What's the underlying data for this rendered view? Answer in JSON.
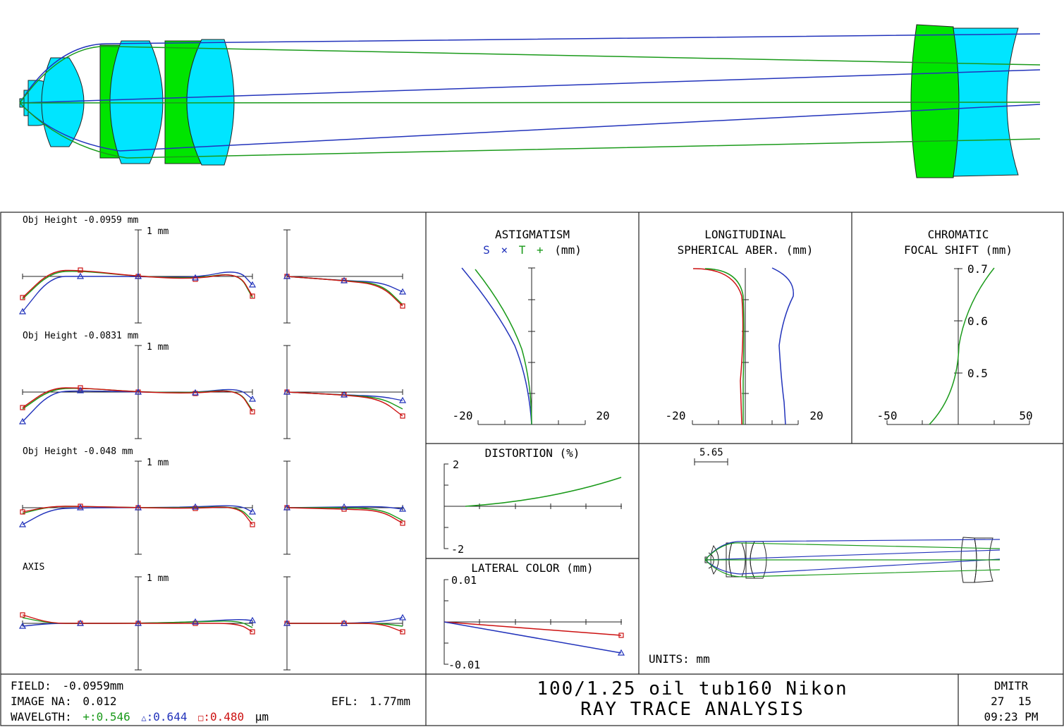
{
  "title_block": {
    "field_label": "FIELD:",
    "field_value": "-0.0959",
    "field_unit": "mm",
    "na_label": "IMAGE NA:",
    "na_value": "0.012",
    "efl_label": "EFL:",
    "efl_value": "1.77",
    "efl_unit": "mm",
    "wave_label": "WAVELGTH:",
    "wavelengths": [
      {
        "symbol": "+",
        "value": ":0.546",
        "color": "#1a9a1a"
      },
      {
        "symbol": "△",
        "value": ":0.644",
        "color": "#2233bb"
      },
      {
        "symbol": "□",
        "value": ":0.480",
        "color": "#cc1111"
      }
    ],
    "wave_unit": "µm",
    "lens_name": "100/1.25 oil tub160 Nikon",
    "analysis_title": "RAY TRACE ANALYSIS",
    "designer": "DMITR",
    "date": "27  15",
    "time": "09:23 PM"
  },
  "fan_plots": {
    "scale_label": "1 mm",
    "rows": [
      {
        "label": "Obj Height -0.0959 mm",
        "show_scale": true
      },
      {
        "label": "Obj Height -0.0831 mm",
        "show_scale": true
      },
      {
        "label": "Obj Height -0.048 mm",
        "show_scale": true
      },
      {
        "label": "AXIS",
        "show_scale": true
      }
    ]
  },
  "astigmatism": {
    "title1": "ASTIGMATISM",
    "title2_s": "S",
    "title2_x": "×",
    "title2_t": "T",
    "title2_plus": "+",
    "title2_unit": "(mm)",
    "xmin_label": "-20",
    "xmax_label": "20"
  },
  "longitudinal": {
    "title1": "LONGITUDINAL",
    "title2": "SPHERICAL ABER. (mm)",
    "xmin_label": "-20",
    "xmax_label": "20"
  },
  "chromatic": {
    "title1": "CHROMATIC",
    "title2": "FOCAL SHIFT (mm)",
    "xmin_label": "-50",
    "xmax_label": "50",
    "y_labels": [
      "0.7",
      "0.6",
      "0.5"
    ]
  },
  "distortion": {
    "title": "DISTORTION (%)",
    "ymax_label": "2",
    "ymin_label": "-2"
  },
  "lateral_color": {
    "title": "LATERAL COLOR (mm)",
    "ymax_label": "0.01",
    "ymin_label": "-0.01"
  },
  "layout_view": {
    "scale_label": "5.65",
    "units_label": "UNITS: mm"
  },
  "colors": {
    "green": "#1a9a1a",
    "blue": "#2233bb",
    "red": "#cc1111",
    "lens_cyan": "#00e5ff",
    "lens_green": "#00e500"
  }
}
